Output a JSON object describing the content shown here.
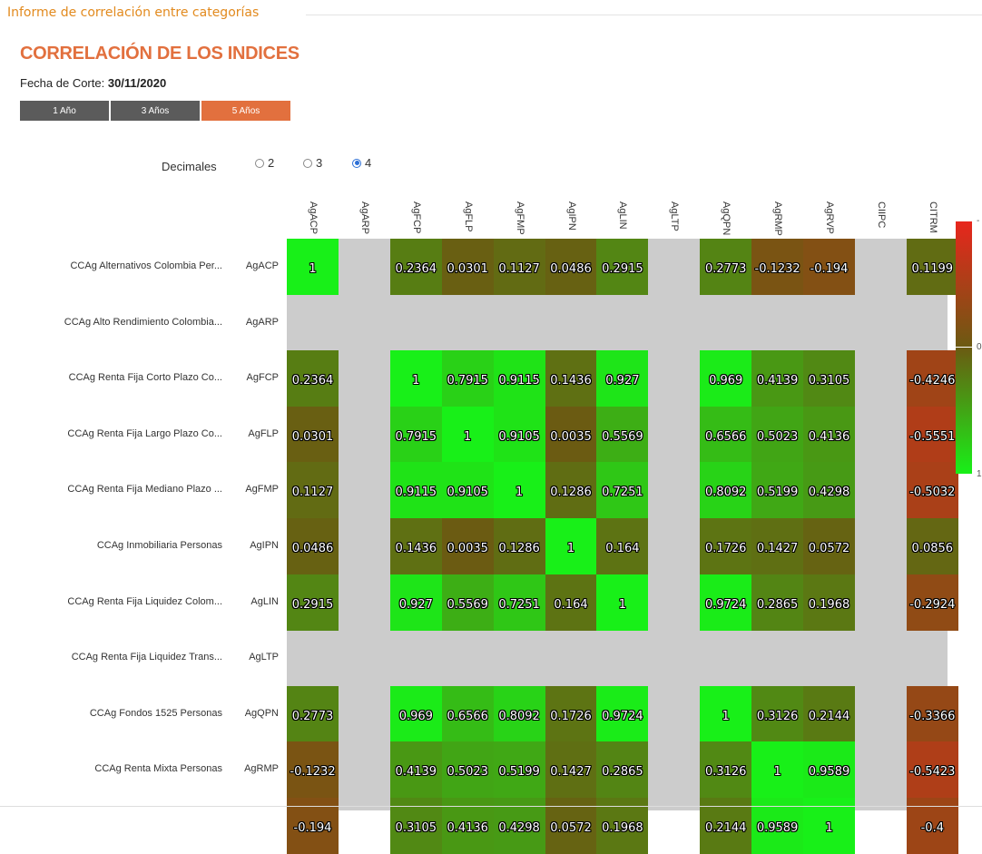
{
  "panel_legend": "Informe de correlación entre categorías",
  "title": "CORRELACIÓN DE LOS INDICES",
  "cutoff": {
    "label": "Fecha de Corte:",
    "value": "30/11/2020"
  },
  "period_tabs": [
    {
      "label": "1 Año",
      "active": false
    },
    {
      "label": "3 Años",
      "active": false
    },
    {
      "label": "5 Años",
      "active": true
    }
  ],
  "decimals": {
    "label": "Decimales",
    "options": [
      "2",
      "3",
      "4"
    ],
    "selected": "4"
  },
  "columns": [
    "AgACP",
    "AgARP",
    "AgFCP",
    "AgFLP",
    "AgFMP",
    "AgIPN",
    "AgLIN",
    "AgLTP",
    "AgQPN",
    "AgRMP",
    "AgRVP",
    "CIIPC",
    "CITRM"
  ],
  "rows": [
    {
      "name": "CCAg Alternativos Colombia Per...",
      "code": "AgACP",
      "values": [
        "1",
        null,
        "0.2364",
        "0.0301",
        "0.1127",
        "0.0486",
        "0.2915",
        null,
        "0.2773",
        "-0.1232",
        "-0.194",
        null,
        "0.1199"
      ]
    },
    {
      "name": "CCAg Alto Rendimiento Colombia...",
      "code": "AgARP",
      "values": [
        null,
        null,
        null,
        null,
        null,
        null,
        null,
        null,
        null,
        null,
        null,
        null,
        null
      ]
    },
    {
      "name": "CCAg Renta Fija Corto Plazo Co...",
      "code": "AgFCP",
      "values": [
        "0.2364",
        null,
        "1",
        "0.7915",
        "0.9115",
        "0.1436",
        "0.927",
        null,
        "0.969",
        "0.4139",
        "0.3105",
        null,
        "-0.4246"
      ]
    },
    {
      "name": "CCAg Renta Fija Largo Plazo Co...",
      "code": "AgFLP",
      "values": [
        "0.0301",
        null,
        "0.7915",
        "1",
        "0.9105",
        "0.0035",
        "0.5569",
        null,
        "0.6566",
        "0.5023",
        "0.4136",
        null,
        "-0.5551"
      ]
    },
    {
      "name": "CCAg Renta Fija Mediano Plazo ...",
      "code": "AgFMP",
      "values": [
        "0.1127",
        null,
        "0.9115",
        "0.9105",
        "1",
        "0.1286",
        "0.7251",
        null,
        "0.8092",
        "0.5199",
        "0.4298",
        null,
        "-0.5032"
      ]
    },
    {
      "name": "CCAg Inmobiliaria Personas",
      "code": "AgIPN",
      "values": [
        "0.0486",
        null,
        "0.1436",
        "0.0035",
        "0.1286",
        "1",
        "0.164",
        null,
        "0.1726",
        "0.1427",
        "0.0572",
        null,
        "0.0856"
      ]
    },
    {
      "name": "CCAg Renta Fija Liquidez Colom...",
      "code": "AgLIN",
      "values": [
        "0.2915",
        null,
        "0.927",
        "0.5569",
        "0.7251",
        "0.164",
        "1",
        null,
        "0.9724",
        "0.2865",
        "0.1968",
        null,
        "-0.2924"
      ]
    },
    {
      "name": "CCAg Renta Fija Liquidez Trans...",
      "code": "AgLTP",
      "values": [
        null,
        null,
        null,
        null,
        null,
        null,
        null,
        null,
        null,
        null,
        null,
        null,
        null
      ]
    },
    {
      "name": "CCAg Fondos 1525 Personas",
      "code": "AgQPN",
      "values": [
        "0.2773",
        null,
        "0.969",
        "0.6566",
        "0.8092",
        "0.1726",
        "0.9724",
        null,
        "1",
        "0.3126",
        "0.2144",
        null,
        "-0.3366"
      ]
    },
    {
      "name": "CCAg Renta Mixta Personas",
      "code": "AgRMP",
      "values": [
        "-0.1232",
        null,
        "0.4139",
        "0.5023",
        "0.5199",
        "0.1427",
        "0.2865",
        null,
        "0.3126",
        "1",
        "0.9589",
        null,
        "-0.5423"
      ]
    },
    {
      "name": "",
      "code": "",
      "values": [
        "-0.194",
        null,
        "0.3105",
        "0.4136",
        "0.4298",
        "0.0572",
        "0.1968",
        null,
        "0.2144",
        "0.9589",
        "1",
        null,
        "-0.4"
      ]
    }
  ],
  "scale": {
    "labels": [
      "-",
      "0",
      "1"
    ],
    "colors": {
      "neg": "#e8261d",
      "zero": "#6b5a12",
      "pos": "#18f018",
      "empty": "#cccccc"
    }
  }
}
